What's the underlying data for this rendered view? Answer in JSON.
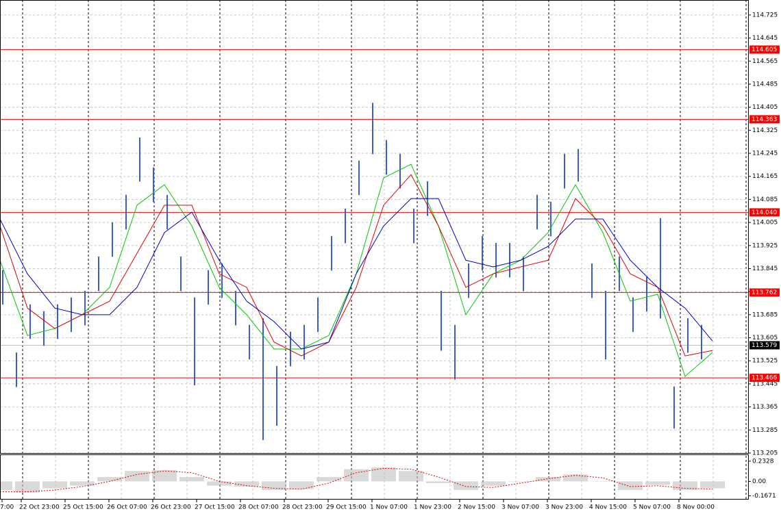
{
  "chart_data": {
    "type": "ohlc",
    "xlabels": [
      "7:00",
      "22 Oct 23:00",
      "25 Oct 15:00",
      "26 Oct 07:00",
      "26 Oct 23:00",
      "27 Oct 15:00",
      "28 Oct 07:00",
      "28 Oct 23:00",
      "29 Oct 15:00",
      "1 Nov 07:00",
      "1 Nov 23:00",
      "2 Nov 15:00",
      "3 Nov 07:00",
      "3 Nov 23:00",
      "4 Nov 15:00",
      "5 Nov 07:00",
      "8 Nov 00:00"
    ],
    "bar_color": "#3a5fcd",
    "high": [
      113.84,
      113.554,
      113.721,
      113.697,
      113.721,
      113.745,
      113.768,
      113.887,
      114.006,
      114.101,
      114.3,
      114.196,
      114.101,
      113.887,
      113.745,
      113.84,
      113.863,
      113.768,
      113.65,
      113.673,
      113.507,
      113.626,
      113.65,
      113.745,
      113.958,
      114.053,
      114.22,
      114.42,
      114.291,
      114.243,
      114.053,
      114.148,
      113.768,
      113.65,
      113.863,
      113.958,
      113.934,
      113.934,
      113.887,
      114.101,
      114.077,
      114.243,
      114.26,
      113.863,
      113.768,
      113.887,
      113.745,
      113.816,
      114.02,
      113.436,
      113.673,
      113.65
    ],
    "low": [
      113.72,
      113.434,
      113.601,
      113.577,
      113.601,
      113.625,
      113.648,
      113.767,
      113.886,
      113.981,
      114.147,
      114.076,
      113.981,
      113.767,
      113.44,
      113.72,
      113.743,
      113.648,
      113.53,
      113.25,
      113.3,
      113.506,
      113.53,
      113.625,
      113.838,
      113.933,
      114.1,
      114.242,
      114.171,
      114.123,
      113.933,
      114.028,
      113.56,
      113.46,
      113.743,
      113.838,
      113.814,
      113.814,
      113.767,
      113.981,
      113.957,
      114.123,
      114.147,
      113.743,
      113.53,
      113.767,
      113.625,
      113.696,
      113.672,
      113.29,
      113.553,
      113.53
    ],
    "series": [
      {
        "color": "#00c800",
        "values": [
          113.874,
          113.613,
          113.637,
          113.685,
          113.78,
          114.065,
          114.136,
          113.993,
          113.78,
          113.685,
          113.566,
          113.566,
          113.613,
          113.827,
          114.16,
          114.207,
          113.993,
          113.685,
          113.827,
          113.874,
          113.97,
          114.136,
          113.97,
          113.732,
          113.756,
          113.471,
          113.554
        ]
      },
      {
        "color": "#e00000",
        "values": [
          113.993,
          113.708,
          113.637,
          113.685,
          113.732,
          113.898,
          114.065,
          114.065,
          113.827,
          113.78,
          113.59,
          113.542,
          113.59,
          113.78,
          114.065,
          114.171,
          113.993,
          113.78,
          113.827,
          113.851,
          113.874,
          114.088,
          113.993,
          113.827,
          113.78,
          113.542,
          113.561
        ]
      },
      {
        "color": "#0000c8",
        "values": [
          114.017,
          113.827,
          113.708,
          113.685,
          113.685,
          113.78,
          113.97,
          114.041,
          113.874,
          113.732,
          113.661,
          113.566,
          113.59,
          113.827,
          113.993,
          114.088,
          114.088,
          113.874,
          113.851,
          113.874,
          113.922,
          114.017,
          114.017,
          113.874,
          113.78,
          113.708,
          113.594
        ]
      }
    ],
    "ylim": [
      113.205,
      114.777
    ],
    "yticks": [
      114.725,
      114.645,
      114.565,
      114.485,
      114.405,
      114.325,
      114.245,
      114.165,
      114.085,
      114.005,
      113.925,
      113.845,
      113.765,
      113.685,
      113.605,
      113.525,
      113.445,
      113.365,
      113.285,
      113.205
    ],
    "grid": true,
    "levels_color": "#ff0000",
    "levels": [
      114.605,
      114.363,
      {
        "value": 114.04,
        "label": "114.040"
      },
      113.762,
      113.466
    ],
    "current_price": 113.579,
    "indicator": {
      "type": "histogram",
      "color": "#c0c0c0",
      "signal_color": "#e00000",
      "values": [
        -0.1,
        -0.13,
        -0.08,
        -0.05,
        0.05,
        0.12,
        0.13,
        0.05,
        -0.05,
        -0.06,
        -0.1,
        -0.09,
        0.05,
        0.14,
        0.16,
        0.12,
        -0.02,
        -0.1,
        -0.05,
        0.0,
        0.05,
        0.08,
        0.0,
        -0.1,
        -0.04,
        -0.1,
        -0.08
      ],
      "signal": [
        -0.12,
        -0.12,
        -0.1,
        -0.06,
        0.0,
        0.08,
        0.12,
        0.1,
        0.0,
        -0.05,
        -0.08,
        -0.09,
        -0.02,
        0.1,
        0.15,
        0.14,
        0.05,
        -0.06,
        -0.07,
        -0.02,
        0.03,
        0.07,
        0.04,
        -0.06,
        -0.05,
        -0.08,
        -0.09
      ],
      "ylim": [
        -0.21,
        0.295
      ],
      "yticks": [
        0.2328,
        {
          "value": 0,
          "label": "0.00"
        },
        -0.1671
      ]
    }
  }
}
